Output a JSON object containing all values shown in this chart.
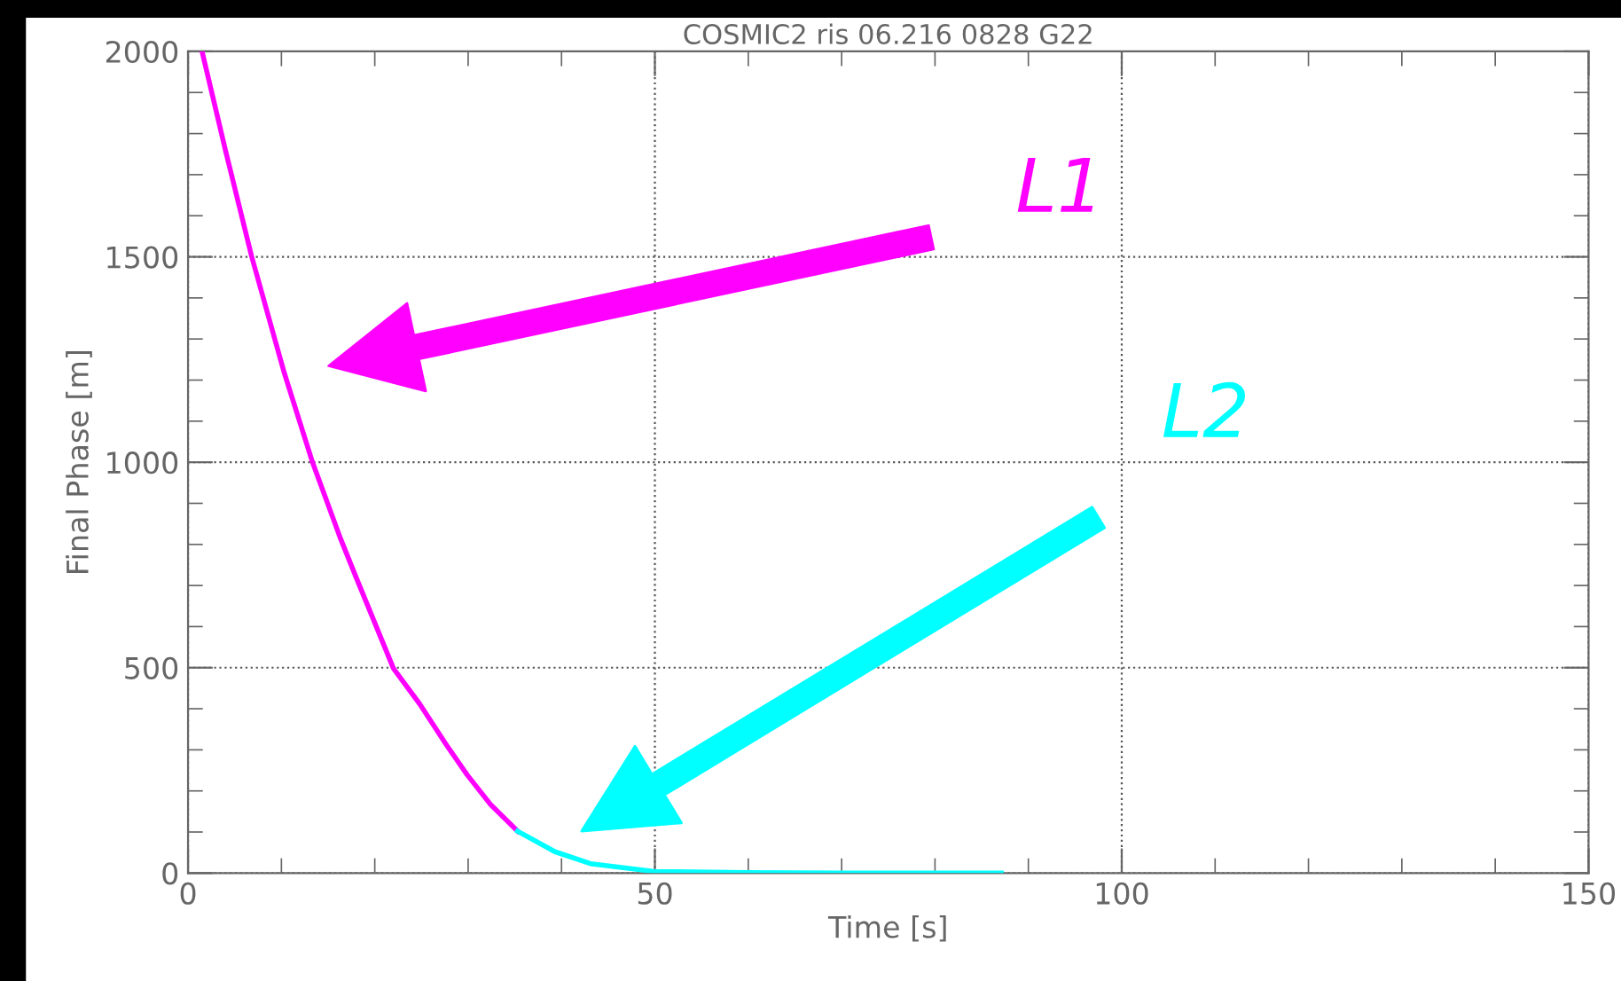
{
  "chart_data": {
    "type": "line",
    "title": "COSMIC2 ris 06.216 0828 G22",
    "xlabel": "Time [s]",
    "ylabel": "Final Phase [m]",
    "series": [
      {
        "color": "#ff00ff",
        "x": [
          1.5,
          4,
          6.8,
          10.3,
          13.3,
          16.3,
          18,
          22,
          24.8,
          27.7,
          29.9,
          32.4,
          35.3
        ],
        "values": [
          2000,
          1760,
          1502,
          1218,
          1002,
          816,
          720,
          498,
          412,
          311,
          239,
          167,
          102
        ]
      },
      {
        "color": "#00ffff",
        "x": [
          35.3,
          39.3,
          43.1,
          49.9,
          60,
          70,
          87.1
        ],
        "values": [
          102,
          52,
          23,
          4,
          1,
          0,
          0
        ]
      }
    ],
    "annotations": [
      "L1",
      "L2"
    ],
    "xlim": [
      0,
      150
    ],
    "xticks": [
      0,
      50,
      100,
      150
    ],
    "ylim": [
      0,
      2000
    ],
    "yticks": [
      0,
      500,
      1000,
      1500,
      2000
    ],
    "grid": true,
    "legend": false
  }
}
